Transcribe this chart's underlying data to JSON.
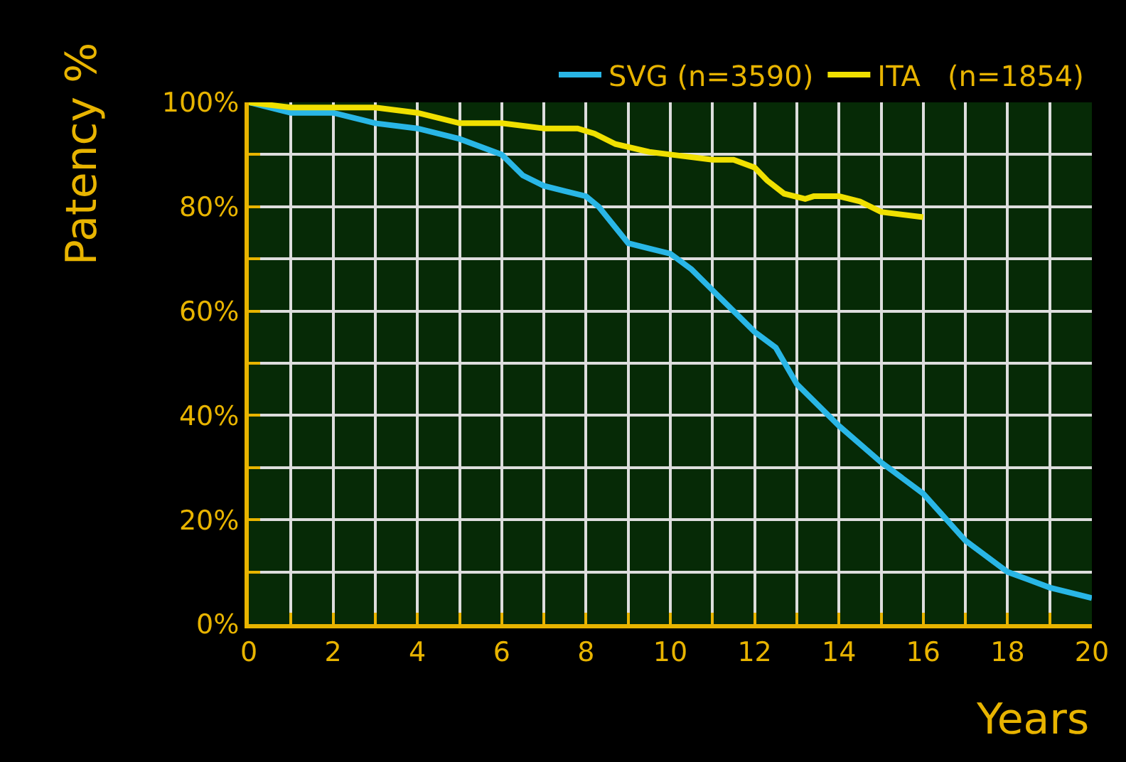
{
  "chart_data": {
    "type": "line",
    "xlabel": "Years",
    "ylabel": "Patency %",
    "xlim": [
      0,
      20
    ],
    "ylim": [
      0,
      100
    ],
    "xticks": [
      0,
      {
        "value": 1,
        "label": null
      },
      2,
      {
        "value": 3,
        "label": null
      },
      4,
      {
        "value": 5,
        "label": null
      },
      6,
      {
        "value": 7,
        "label": null
      },
      8,
      {
        "value": 9,
        "label": null
      },
      10,
      {
        "value": 11,
        "label": null
      },
      12,
      {
        "value": 13,
        "label": null
      },
      14,
      {
        "value": 15,
        "label": null
      },
      16,
      {
        "value": 17,
        "label": null
      },
      18,
      {
        "value": 19,
        "label": null
      },
      20
    ],
    "yticks": [
      {
        "value": 0,
        "label": "0%"
      },
      {
        "value": 10,
        "label": null
      },
      {
        "value": 20,
        "label": "20%"
      },
      {
        "value": 30,
        "label": null
      },
      {
        "value": 40,
        "label": "40%"
      },
      {
        "value": 50,
        "label": null
      },
      {
        "value": 60,
        "label": "60%"
      },
      {
        "value": 70,
        "label": null
      },
      {
        "value": 80,
        "label": "80%"
      },
      {
        "value": 90,
        "label": null
      },
      {
        "value": 100,
        "label": "100%"
      }
    ],
    "grid": true,
    "legend": "top right",
    "marker": "none",
    "line_style": "solid",
    "series": [
      {
        "name": "SVG (n=3590)",
        "color": "#29b6e6",
        "x": [
          0,
          1,
          2,
          3,
          4,
          5,
          6,
          6.5,
          7,
          7.5,
          8,
          8.3,
          8.7,
          9,
          9.5,
          10,
          10.5,
          11,
          12,
          12.5,
          13,
          14,
          15,
          16,
          17,
          18,
          18.5,
          19,
          20
        ],
        "values": [
          100,
          98,
          98,
          96,
          95,
          93,
          90,
          86,
          84,
          83,
          82,
          80,
          76,
          73,
          72,
          71,
          68,
          64,
          56,
          53,
          46,
          38,
          31,
          25,
          16,
          10,
          8.5,
          7,
          5
        ]
      },
      {
        "name": "ITA   (n=1854)",
        "color": "#f0e000",
        "x": [
          0,
          1,
          2,
          3,
          4,
          5,
          6,
          7,
          7.8,
          8.2,
          8.7,
          9.5,
          10,
          11,
          11.5,
          12,
          12.3,
          12.7,
          13.2,
          13.4,
          14,
          14.5,
          15,
          16
        ],
        "values": [
          100,
          99,
          99,
          99,
          98,
          96,
          96,
          95,
          95,
          94,
          92,
          90.5,
          90,
          89,
          89,
          87.5,
          85,
          82.5,
          81.5,
          82,
          82,
          81,
          79,
          78
        ]
      }
    ]
  }
}
